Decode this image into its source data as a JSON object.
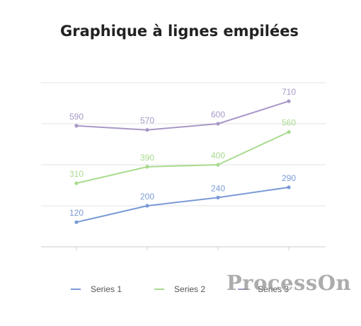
{
  "chart_data": {
    "type": "line",
    "stacked": true,
    "title": "Graphique à lignes empilées",
    "categories": [
      "",
      "",
      "",
      ""
    ],
    "series": [
      {
        "name": "Series 1",
        "color": "#7a9ad6",
        "values": [
          120,
          200,
          240,
          290
        ]
      },
      {
        "name": "Series 2",
        "color": "#a8db8e",
        "values": [
          310,
          390,
          400,
          560
        ]
      },
      {
        "name": "Series 3",
        "color": "#a898c8",
        "values": [
          590,
          570,
          600,
          710
        ]
      }
    ],
    "ylim": [
      0,
      800
    ],
    "y_gridlines": [
      200,
      400,
      600,
      800
    ],
    "grid": true,
    "legend": "bottom"
  },
  "watermark": "ProcessOn"
}
